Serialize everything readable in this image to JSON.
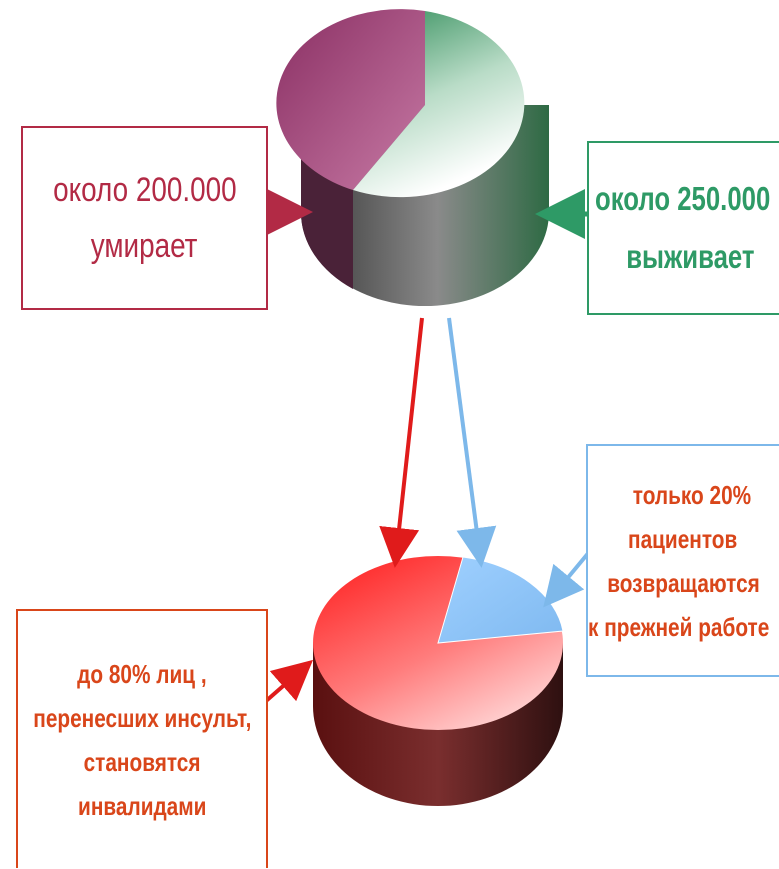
{
  "boxes": {
    "dies": {
      "line1": "около 200.000",
      "line2": "умирает"
    },
    "survives": {
      "line1": "около 250.000",
      "line2": "выживает"
    },
    "returns": {
      "line1": "только 20%",
      "line2": "пациентов",
      "line3": "возвращаются",
      "line4": "к прежней работе"
    },
    "disabled": {
      "line1": "до 80% лиц ,",
      "line2": "перенесших инсульт,",
      "line3": "становятся",
      "line4": "инвалидами"
    }
  },
  "chart_data": [
    {
      "type": "pie",
      "slices": [
        {
          "share": 0.42,
          "color": "#a23b72"
        },
        {
          "share": 0.58,
          "color": "#2e8b57"
        }
      ]
    },
    {
      "type": "pie",
      "slices": [
        {
          "share": 0.8,
          "color": "#ff2a2a"
        },
        {
          "share": 0.2,
          "color": "#8ec7ff"
        }
      ]
    }
  ],
  "colors": {
    "dies": "#b22a45",
    "survives": "#2e9a66",
    "returns_border": "#7db8ea",
    "accent_text": "#d9461a",
    "arrow_red": "#e01b1b",
    "arrow_blue": "#7db8ea"
  }
}
